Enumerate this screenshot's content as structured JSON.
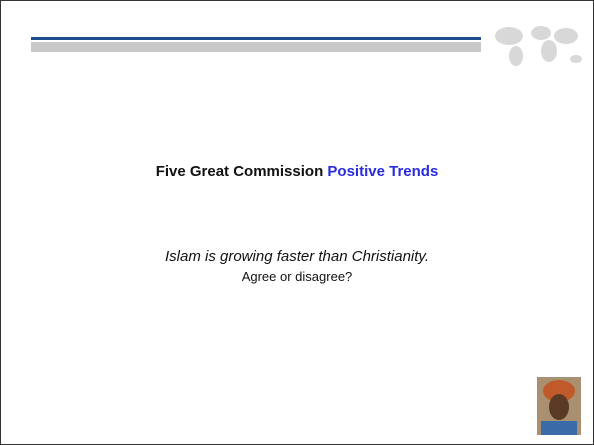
{
  "slide": {
    "title_part1": "Five Great Commission",
    "title_part2": "Positive Trends",
    "question": "Islam is growing faster than Christianity.",
    "prompt": "Agree or disagree?"
  }
}
